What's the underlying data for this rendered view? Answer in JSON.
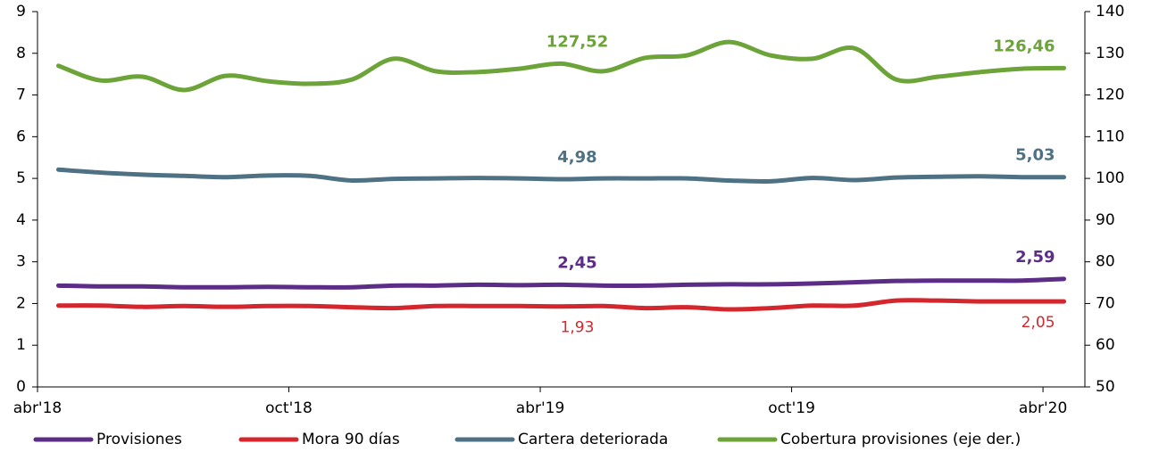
{
  "chart_data": {
    "type": "line",
    "categories": [
      "abr'18",
      null,
      null,
      null,
      null,
      null,
      "oct'18",
      null,
      null,
      null,
      null,
      null,
      "abr'19",
      null,
      null,
      null,
      null,
      null,
      "oct'19",
      null,
      null,
      null,
      null,
      null,
      "abr'20"
    ],
    "ylim": [
      0,
      9
    ],
    "yticks": [
      0,
      1,
      2,
      3,
      4,
      5,
      6,
      7,
      8,
      9
    ],
    "y2lim": [
      50,
      140
    ],
    "y2ticks": [
      50,
      60,
      70,
      80,
      90,
      100,
      110,
      120,
      130,
      140
    ],
    "legend": "bottom",
    "series": [
      {
        "name": "Provisiones",
        "color": "#5c2d86",
        "values": [
          2.43,
          2.41,
          2.41,
          2.39,
          2.39,
          2.4,
          2.39,
          2.39,
          2.43,
          2.43,
          2.45,
          2.44,
          2.45,
          2.43,
          2.43,
          2.45,
          2.46,
          2.46,
          2.48,
          2.51,
          2.54,
          2.55,
          2.55,
          2.55,
          2.59
        ],
        "value_labels": [
          null,
          null,
          null,
          null,
          null,
          null,
          null,
          null,
          null,
          null,
          null,
          null,
          "2,45",
          null,
          null,
          null,
          null,
          null,
          null,
          null,
          null,
          null,
          null,
          null,
          "2,59"
        ]
      },
      {
        "name": "Mora 90 días",
        "color": "#d3262d",
        "values": [
          1.95,
          1.95,
          1.92,
          1.94,
          1.92,
          1.94,
          1.94,
          1.91,
          1.89,
          1.94,
          1.94,
          1.94,
          1.93,
          1.94,
          1.89,
          1.91,
          1.86,
          1.89,
          1.95,
          1.95,
          2.07,
          2.07,
          2.05,
          2.05,
          2.05
        ],
        "value_labels": [
          null,
          null,
          null,
          null,
          null,
          null,
          null,
          null,
          null,
          null,
          null,
          null,
          "1,93",
          null,
          null,
          null,
          null,
          null,
          null,
          null,
          null,
          null,
          null,
          null,
          "2,05"
        ]
      },
      {
        "name": "Cartera deteriorada",
        "color": "#4f7184",
        "values": [
          5.21,
          5.14,
          5.09,
          5.06,
          5.03,
          5.07,
          5.06,
          4.95,
          4.99,
          5.0,
          5.01,
          5.0,
          4.98,
          5.0,
          5.0,
          5.0,
          4.95,
          4.93,
          5.01,
          4.96,
          5.02,
          5.04,
          5.05,
          5.03,
          5.03
        ],
        "value_labels": [
          null,
          null,
          null,
          null,
          null,
          null,
          null,
          null,
          null,
          null,
          null,
          null,
          "4,98",
          null,
          null,
          null,
          null,
          null,
          null,
          null,
          null,
          null,
          null,
          null,
          "5,03"
        ]
      },
      {
        "name": "Cobertura provisiones (eje der.)",
        "color": "#6da43a",
        "axis": "y2",
        "values": [
          127.0,
          123.5,
          124.4,
          121.2,
          124.6,
          123.3,
          122.7,
          123.7,
          128.7,
          125.7,
          125.5,
          126.3,
          127.52,
          125.7,
          128.9,
          129.5,
          132.7,
          129.5,
          128.7,
          131.2,
          123.7,
          124.4,
          125.5,
          126.3,
          126.46
        ],
        "value_labels": [
          null,
          null,
          null,
          null,
          null,
          null,
          null,
          null,
          null,
          null,
          null,
          null,
          "127,52",
          null,
          null,
          null,
          null,
          null,
          null,
          null,
          null,
          null,
          null,
          null,
          "126,46"
        ]
      }
    ]
  }
}
